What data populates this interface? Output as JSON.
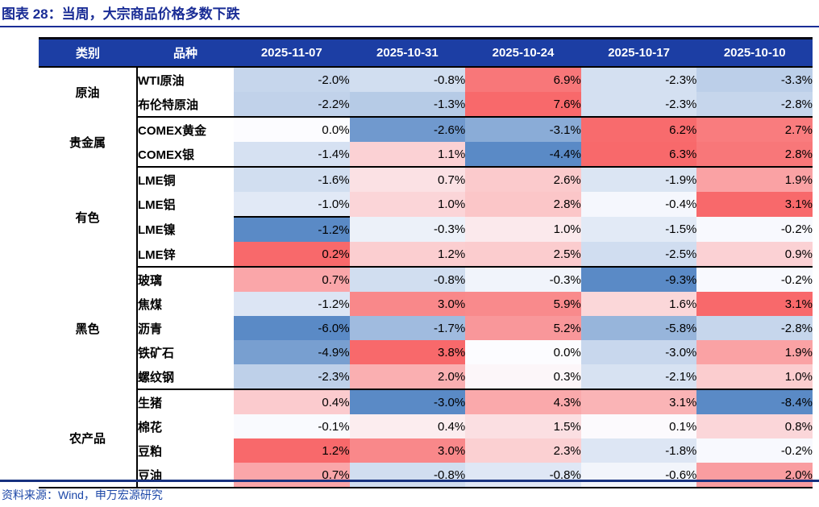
{
  "title": "图表 28：当周，大宗商品价格多数下跌",
  "source": "资料来源：Wind，申万宏源研究",
  "colors": {
    "title_text": "#1A2D96",
    "header_bg": "#1C3EA4",
    "header_text": "#FFFFFF",
    "source_text": "#1C47A8",
    "divider": "#16307E",
    "grid_border": "#000000"
  },
  "chart_data": {
    "type": "heatmap",
    "columns": [
      "类别",
      "品种",
      "2025-11-07",
      "2025-10-31",
      "2025-10-24",
      "2025-10-17",
      "2025-10-10"
    ],
    "value_format": "percent_1dp",
    "color_scale": {
      "scope": "per_column",
      "midpoint": 0,
      "min_color": "#5A8AC6",
      "mid_color": "#FCFCFF",
      "max_color": "#F8696B"
    },
    "groups": [
      {
        "category": "原油",
        "rows": [
          {
            "name": "WTI原油",
            "values": [
              -2.0,
              -0.8,
              6.9,
              -2.3,
              -3.3
            ]
          },
          {
            "name": "布伦特原油",
            "values": [
              -2.2,
              -1.3,
              7.6,
              -2.3,
              -2.8
            ]
          }
        ]
      },
      {
        "category": "贵金属",
        "rows": [
          {
            "name": "COMEX黄金",
            "values": [
              0.0,
              -2.6,
              -3.1,
              6.2,
              2.7
            ]
          },
          {
            "name": "COMEX银",
            "values": [
              -1.4,
              1.1,
              -4.4,
              6.3,
              2.8
            ]
          }
        ]
      },
      {
        "category": "有色",
        "rows": [
          {
            "name": "LME铜",
            "values": [
              -1.6,
              0.7,
              2.6,
              -1.9,
              1.9
            ]
          },
          {
            "name": "LME铝",
            "values": [
              -1.0,
              1.0,
              2.8,
              -0.4,
              3.1
            ]
          },
          {
            "name": "LME镍",
            "values": [
              -1.2,
              -0.3,
              1.0,
              -1.5,
              -0.2
            ]
          },
          {
            "name": "LME锌",
            "values": [
              0.2,
              1.2,
              2.5,
              -2.5,
              0.9
            ]
          }
        ]
      },
      {
        "category": "黑色",
        "rows": [
          {
            "name": "玻璃",
            "values": [
              0.7,
              -0.8,
              -0.3,
              -9.3,
              -0.2
            ]
          },
          {
            "name": "焦煤",
            "values": [
              -1.2,
              3.0,
              5.9,
              1.6,
              3.1
            ]
          },
          {
            "name": "沥青",
            "values": [
              -6.0,
              -1.7,
              5.2,
              -5.8,
              -2.8
            ]
          },
          {
            "name": "铁矿石",
            "values": [
              -4.9,
              3.8,
              0.0,
              -3.0,
              1.9
            ]
          },
          {
            "name": "螺纹钢",
            "values": [
              -2.3,
              2.0,
              0.3,
              -2.1,
              1.0
            ]
          }
        ]
      },
      {
        "category": "农产品",
        "rows": [
          {
            "name": "生猪",
            "values": [
              0.4,
              -3.0,
              4.3,
              3.1,
              -8.4
            ]
          },
          {
            "name": "棉花",
            "values": [
              -0.1,
              0.4,
              1.5,
              0.1,
              0.8
            ]
          },
          {
            "name": "豆粕",
            "values": [
              1.2,
              3.0,
              2.3,
              -1.8,
              -0.2
            ]
          },
          {
            "name": "豆油",
            "values": [
              0.7,
              -0.8,
              -0.8,
              -0.6,
              2.0
            ]
          }
        ]
      }
    ],
    "cell_overrides": [
      {
        "row": "LME镍",
        "col": "2025-11-07",
        "color": "#5A8AC6",
        "top_border": true
      },
      {
        "row": "LME锌",
        "col": "2025-11-07",
        "color": "#F8696B"
      }
    ]
  }
}
